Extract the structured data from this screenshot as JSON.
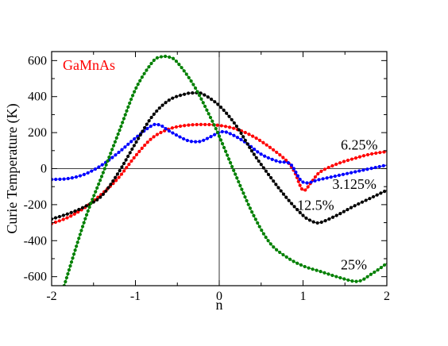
{
  "chart_data": {
    "type": "scatter",
    "material": "GaMnAs",
    "material_color": "#ff0000",
    "xlabel": "n",
    "ylabel": "Curie Temperature (K)",
    "xlim": [
      -2,
      2
    ],
    "ylim": [
      -650,
      650
    ],
    "x_ticks": [
      -2,
      -1,
      0,
      1,
      2
    ],
    "x_tick_labels": [
      "-2",
      "-1",
      "0",
      "1",
      "2"
    ],
    "y_ticks": [
      -600,
      -400,
      -200,
      0,
      200,
      400,
      600
    ],
    "y_tick_labels": [
      "-600",
      "-400",
      "-200",
      "0",
      "200",
      "400",
      "600"
    ],
    "reference_lines": {
      "x": 0,
      "y": 0
    },
    "grid": false,
    "series": [
      {
        "name": "6.25%",
        "color": "#ff0000",
        "points": [
          [
            -2.0,
            -305
          ],
          [
            -1.8,
            -270
          ],
          [
            -1.6,
            -215
          ],
          [
            -1.4,
            -140
          ],
          [
            -1.2,
            -50
          ],
          [
            -1.0,
            70
          ],
          [
            -0.8,
            170
          ],
          [
            -0.6,
            220
          ],
          [
            -0.4,
            240
          ],
          [
            -0.2,
            245
          ],
          [
            0.0,
            240
          ],
          [
            0.2,
            220
          ],
          [
            0.4,
            180
          ],
          [
            0.6,
            120
          ],
          [
            0.8,
            45
          ],
          [
            0.9,
            -20
          ],
          [
            1.0,
            -120
          ],
          [
            1.1,
            -75
          ],
          [
            1.2,
            -20
          ],
          [
            1.4,
            25
          ],
          [
            1.6,
            55
          ],
          [
            1.8,
            80
          ],
          [
            2.0,
            95
          ]
        ]
      },
      {
        "name": "3.125%",
        "color": "#0000ff",
        "points": [
          [
            -2.0,
            -60
          ],
          [
            -1.8,
            -55
          ],
          [
            -1.6,
            -30
          ],
          [
            -1.4,
            20
          ],
          [
            -1.2,
            90
          ],
          [
            -1.0,
            170
          ],
          [
            -0.8,
            240
          ],
          [
            -0.7,
            240
          ],
          [
            -0.6,
            210
          ],
          [
            -0.4,
            160
          ],
          [
            -0.3,
            150
          ],
          [
            -0.2,
            155
          ],
          [
            0.0,
            200
          ],
          [
            0.1,
            200
          ],
          [
            0.3,
            150
          ],
          [
            0.5,
            80
          ],
          [
            0.7,
            40
          ],
          [
            0.85,
            25
          ],
          [
            1.0,
            -75
          ],
          [
            1.2,
            -60
          ],
          [
            1.4,
            -40
          ],
          [
            1.6,
            -20
          ],
          [
            1.8,
            0
          ],
          [
            2.0,
            20
          ]
        ]
      },
      {
        "name": "12.5%",
        "color": "#000000",
        "points": [
          [
            -2.0,
            -280
          ],
          [
            -1.8,
            -250
          ],
          [
            -1.6,
            -210
          ],
          [
            -1.4,
            -150
          ],
          [
            -1.2,
            -20
          ],
          [
            -1.0,
            140
          ],
          [
            -0.8,
            290
          ],
          [
            -0.6,
            380
          ],
          [
            -0.4,
            415
          ],
          [
            -0.3,
            420
          ],
          [
            -0.2,
            415
          ],
          [
            0.0,
            350
          ],
          [
            0.2,
            240
          ],
          [
            0.4,
            90
          ],
          [
            0.6,
            -40
          ],
          [
            0.8,
            -160
          ],
          [
            1.0,
            -260
          ],
          [
            1.1,
            -290
          ],
          [
            1.2,
            -300
          ],
          [
            1.4,
            -260
          ],
          [
            1.6,
            -210
          ],
          [
            1.8,
            -165
          ],
          [
            2.0,
            -120
          ]
        ]
      },
      {
        "name": "25%",
        "color": "#008000",
        "points": [
          [
            -1.85,
            -650
          ],
          [
            -1.6,
            -280
          ],
          [
            -1.4,
            -40
          ],
          [
            -1.2,
            200
          ],
          [
            -1.0,
            440
          ],
          [
            -0.8,
            590
          ],
          [
            -0.7,
            620
          ],
          [
            -0.6,
            620
          ],
          [
            -0.5,
            590
          ],
          [
            -0.3,
            460
          ],
          [
            -0.1,
            280
          ],
          [
            0.0,
            180
          ],
          [
            0.2,
            -40
          ],
          [
            0.4,
            -250
          ],
          [
            0.6,
            -410
          ],
          [
            0.8,
            -490
          ],
          [
            1.0,
            -540
          ],
          [
            1.2,
            -570
          ],
          [
            1.4,
            -600
          ],
          [
            1.6,
            -625
          ],
          [
            1.7,
            -620
          ],
          [
            1.8,
            -590
          ],
          [
            1.9,
            -560
          ],
          [
            2.0,
            -525
          ]
        ]
      }
    ],
    "annotations": [
      {
        "text": "6.25%",
        "x": 1.45,
        "y": 105
      },
      {
        "text": "3.125%",
        "x": 1.35,
        "y": -112
      },
      {
        "text": "12.5%",
        "x": 0.93,
        "y": -230
      },
      {
        "text": "25%",
        "x": 1.45,
        "y": -560
      }
    ]
  }
}
